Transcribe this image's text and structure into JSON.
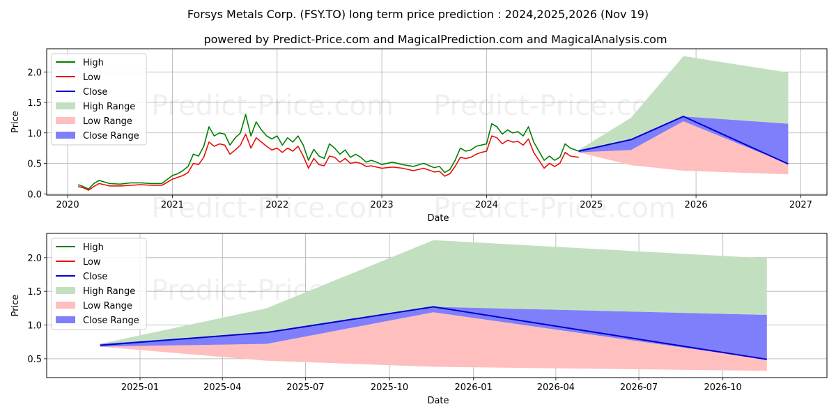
{
  "title": "Forsys Metals Corp. (FSY.TO) long term price prediction : 2024,2025,2026 (Nov 19)",
  "subtitle": "powered by Predict-Price.com and MagicalPrediction.com and MagicalAnalysis.com",
  "watermark": "Predict-Price.com",
  "colors": {
    "high": "#008000",
    "low": "#e8100b",
    "close": "#0000cc",
    "high_range": "#c2e0c0",
    "low_range": "#ffbfbf",
    "close_range": "#7f7ffb",
    "grid": "#b0b0b0"
  },
  "chart_data": [
    {
      "type": "line",
      "name": "historical-and-forecast",
      "xlabel": "Date",
      "ylabel": "Price",
      "xlim": [
        2019.8,
        2027.25
      ],
      "ylim": [
        -0.02,
        2.38
      ],
      "xticks": [
        2020,
        2021,
        2022,
        2023,
        2024,
        2025,
        2026,
        2027
      ],
      "xtick_labels": [
        "2020",
        "2021",
        "2022",
        "2023",
        "2024",
        "2025",
        "2026",
        "2027"
      ],
      "yticks": [
        0.0,
        0.5,
        1.0,
        1.5,
        2.0
      ],
      "ytick_labels": [
        "0.0",
        "0.5",
        "1.0",
        "1.5",
        "2.0"
      ],
      "grid": true,
      "legend": {
        "position": "upper-left",
        "entries": [
          "High",
          "Low",
          "Close",
          "High Range",
          "Low Range",
          "Close Range"
        ]
      },
      "history": {
        "x": [
          2020.1,
          2020.15,
          2020.2,
          2020.25,
          2020.3,
          2020.4,
          2020.5,
          2020.6,
          2020.7,
          2020.8,
          2020.9,
          2021.0,
          2021.05,
          2021.1,
          2021.15,
          2021.2,
          2021.25,
          2021.3,
          2021.35,
          2021.4,
          2021.45,
          2021.5,
          2021.55,
          2021.6,
          2021.65,
          2021.7,
          2021.75,
          2021.8,
          2021.85,
          2021.9,
          2021.95,
          2022.0,
          2022.05,
          2022.1,
          2022.15,
          2022.2,
          2022.25,
          2022.3,
          2022.35,
          2022.4,
          2022.45,
          2022.5,
          2022.55,
          2022.6,
          2022.65,
          2022.7,
          2022.75,
          2022.8,
          2022.85,
          2022.9,
          2022.95,
          2023.0,
          2023.1,
          2023.2,
          2023.3,
          2023.4,
          2023.5,
          2023.55,
          2023.6,
          2023.65,
          2023.7,
          2023.75,
          2023.8,
          2023.85,
          2023.9,
          2023.95,
          2024.0,
          2024.05,
          2024.1,
          2024.15,
          2024.2,
          2024.25,
          2024.3,
          2024.35,
          2024.4,
          2024.45,
          2024.5,
          2024.55,
          2024.6,
          2024.65,
          2024.7,
          2024.75,
          2024.8,
          2024.88
        ],
        "high": [
          0.15,
          0.12,
          0.08,
          0.17,
          0.22,
          0.17,
          0.16,
          0.18,
          0.18,
          0.17,
          0.17,
          0.3,
          0.33,
          0.38,
          0.45,
          0.65,
          0.62,
          0.78,
          1.1,
          0.95,
          1.0,
          0.98,
          0.8,
          0.92,
          1.0,
          1.3,
          0.95,
          1.18,
          1.05,
          0.95,
          0.9,
          0.95,
          0.8,
          0.92,
          0.85,
          0.95,
          0.8,
          0.55,
          0.73,
          0.62,
          0.58,
          0.82,
          0.75,
          0.65,
          0.72,
          0.6,
          0.65,
          0.6,
          0.52,
          0.55,
          0.52,
          0.48,
          0.52,
          0.48,
          0.45,
          0.5,
          0.43,
          0.45,
          0.35,
          0.4,
          0.55,
          0.75,
          0.7,
          0.72,
          0.78,
          0.8,
          0.82,
          1.15,
          1.1,
          0.98,
          1.05,
          1.0,
          1.02,
          0.95,
          1.1,
          0.85,
          0.7,
          0.55,
          0.62,
          0.55,
          0.6,
          0.82,
          0.75,
          0.7
        ],
        "low": [
          0.12,
          0.1,
          0.06,
          0.12,
          0.17,
          0.13,
          0.13,
          0.14,
          0.15,
          0.14,
          0.14,
          0.24,
          0.27,
          0.3,
          0.35,
          0.5,
          0.48,
          0.6,
          0.85,
          0.78,
          0.82,
          0.8,
          0.65,
          0.72,
          0.8,
          0.98,
          0.75,
          0.92,
          0.85,
          0.78,
          0.72,
          0.75,
          0.68,
          0.75,
          0.7,
          0.78,
          0.62,
          0.42,
          0.58,
          0.48,
          0.46,
          0.62,
          0.6,
          0.52,
          0.58,
          0.5,
          0.52,
          0.5,
          0.45,
          0.46,
          0.44,
          0.42,
          0.44,
          0.42,
          0.38,
          0.42,
          0.36,
          0.37,
          0.29,
          0.33,
          0.45,
          0.6,
          0.58,
          0.6,
          0.65,
          0.68,
          0.7,
          0.95,
          0.92,
          0.82,
          0.88,
          0.85,
          0.86,
          0.8,
          0.9,
          0.68,
          0.55,
          0.42,
          0.5,
          0.45,
          0.5,
          0.68,
          0.62,
          0.6
        ]
      },
      "forecast": {
        "x": [
          2024.88,
          2025.38,
          2025.88,
          2026.88
        ],
        "close": [
          0.7,
          0.89,
          1.27,
          0.49
        ],
        "high_range": [
          0.72,
          1.25,
          2.26,
          1.99
        ],
        "low_range": [
          0.68,
          0.47,
          0.38,
          0.32
        ],
        "close_range_upper": [
          0.72,
          0.89,
          1.27,
          1.15
        ],
        "close_range_lower": [
          0.68,
          0.72,
          1.19,
          0.49
        ]
      }
    },
    {
      "type": "line",
      "name": "forecast-zoom",
      "xlabel": "Date",
      "ylabel": "Price",
      "xlim": [
        2024.72,
        2027.06
      ],
      "ylim": [
        0.22,
        2.36
      ],
      "xticks": [
        2025.0,
        2025.247,
        2025.496,
        2025.748,
        2026.0,
        2026.247,
        2026.496,
        2026.748
      ],
      "xtick_labels": [
        "2025-01",
        "2025-04",
        "2025-07",
        "2025-10",
        "2026-01",
        "2026-04",
        "2026-07",
        "2026-10"
      ],
      "yticks": [
        0.5,
        1.0,
        1.5,
        2.0
      ],
      "ytick_labels": [
        "0.5",
        "1.0",
        "1.5",
        "2.0"
      ],
      "grid": true,
      "legend": {
        "position": "upper-left",
        "entries": [
          "High",
          "Low",
          "Close",
          "High Range",
          "Low Range",
          "Close Range"
        ]
      },
      "forecast": {
        "x": [
          2024.88,
          2025.38,
          2025.88,
          2026.88
        ],
        "close": [
          0.7,
          0.89,
          1.27,
          0.49
        ],
        "high_range": [
          0.72,
          1.25,
          2.26,
          1.99
        ],
        "low_range": [
          0.68,
          0.47,
          0.38,
          0.32
        ],
        "close_range_upper": [
          0.72,
          0.89,
          1.27,
          1.15
        ],
        "close_range_lower": [
          0.68,
          0.72,
          1.19,
          0.49
        ]
      }
    }
  ]
}
